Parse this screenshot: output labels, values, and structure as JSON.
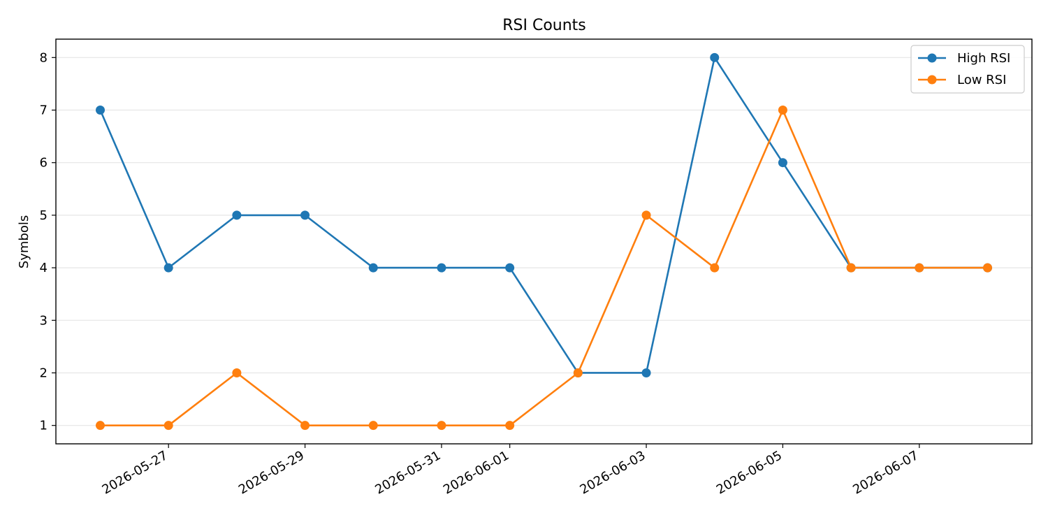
{
  "chart_data": {
    "type": "line",
    "title": "RSI Counts",
    "xlabel": "",
    "ylabel": "Symbols",
    "x": [
      "2026-05-26",
      "2026-05-27",
      "2026-05-28",
      "2026-05-29",
      "2026-05-30",
      "2026-05-31",
      "2026-06-01",
      "2026-06-02",
      "2026-06-03",
      "2026-06-04",
      "2026-06-05",
      "2026-06-06",
      "2026-06-07",
      "2026-06-08"
    ],
    "xtick_labels": [
      "2026-05-27",
      "2026-05-29",
      "2026-05-31",
      "2026-06-01",
      "2026-06-03",
      "2026-06-05",
      "2026-06-07"
    ],
    "yticks": [
      1,
      2,
      3,
      4,
      5,
      6,
      7,
      8
    ],
    "ylim": [
      0.65,
      8.35
    ],
    "grid": "y",
    "legend": "top-right",
    "series": [
      {
        "name": "High RSI",
        "color": "#1f77b4",
        "values": [
          7,
          4,
          5,
          5,
          4,
          4,
          4,
          2,
          2,
          8,
          6,
          4,
          4,
          4
        ]
      },
      {
        "name": "Low RSI",
        "color": "#ff7f0e",
        "values": [
          1,
          1,
          2,
          1,
          1,
          1,
          1,
          2,
          5,
          4,
          7,
          4,
          4,
          4
        ]
      }
    ]
  }
}
